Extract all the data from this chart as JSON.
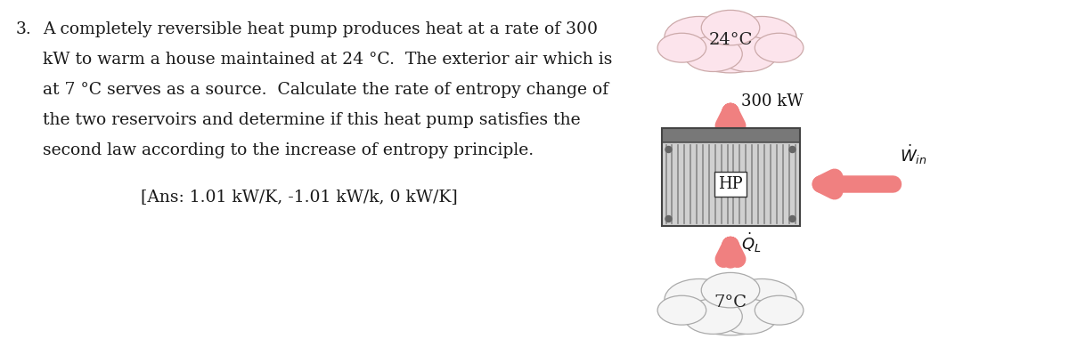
{
  "background_color": "#ffffff",
  "text_color": "#1a1a1a",
  "problem_number": "3.",
  "problem_text_lines": [
    "A completely reversible heat pump produces heat at a rate of 300",
    "kW to warm a house maintained at 24 °C.  The exterior air which is",
    "at 7 °C serves as a source.  Calculate the rate of entropy change of",
    "the two reservoirs and determine if this heat pump satisfies the",
    "second law according to the increase of entropy principle."
  ],
  "answer_text": "[Ans: 1.01 kW/K, -1.01 kW/k, 0 kW/K]",
  "diagram": {
    "hot_reservoir_label": "24°C",
    "cold_reservoir_label": "7°C",
    "hp_label": "HP",
    "arrow_up_top_label": "300 kW",
    "arrow_color": "#f08080",
    "cloud_color_hot": "#fce4ec",
    "cloud_color_cold": "#f5f5f5",
    "cloud_edge_hot": "#ccaaaa",
    "cloud_edge_cold": "#aaaaaa",
    "box_stripe_color": "#b0b0b0",
    "box_top_color": "#888888",
    "box_body_color": "#c8c8c8",
    "box_edge_color": "#555555"
  }
}
